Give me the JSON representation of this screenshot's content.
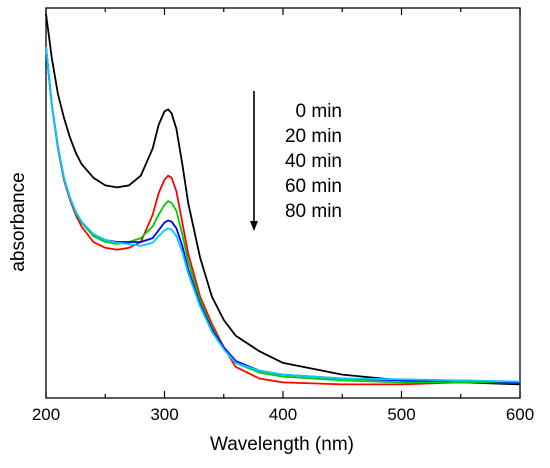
{
  "chart_data": {
    "type": "line",
    "xlabel": "Wavelength (nm)",
    "ylabel": "absorbance",
    "xlim": [
      200,
      600
    ],
    "ylim": [
      0,
      1
    ],
    "x_ticks": [
      200,
      300,
      400,
      500,
      600
    ],
    "y_ticks_shown": false,
    "grid": false,
    "legend_placement": "top-center",
    "legend_arrow": "down",
    "series": [
      {
        "name": "0 min",
        "color": "#000000",
        "x": [
          200,
          205,
          210,
          215,
          220,
          225,
          230,
          240,
          250,
          260,
          270,
          280,
          290,
          295,
          300,
          303,
          306,
          310,
          315,
          320,
          330,
          340,
          350,
          360,
          380,
          400,
          450,
          500,
          550,
          600
        ],
        "y": [
          0.985,
          0.87,
          0.78,
          0.72,
          0.67,
          0.63,
          0.6,
          0.565,
          0.545,
          0.54,
          0.545,
          0.57,
          0.64,
          0.7,
          0.735,
          0.74,
          0.73,
          0.69,
          0.6,
          0.5,
          0.36,
          0.26,
          0.2,
          0.16,
          0.12,
          0.09,
          0.06,
          0.045,
          0.04,
          0.035
        ]
      },
      {
        "name": "20 min",
        "color": "#ff0000",
        "x": [
          200,
          205,
          210,
          215,
          220,
          225,
          230,
          240,
          250,
          260,
          270,
          280,
          290,
          295,
          300,
          303,
          306,
          310,
          315,
          320,
          330,
          340,
          350,
          360,
          380,
          400,
          450,
          500,
          550,
          600
        ],
        "y": [
          0.9,
          0.75,
          0.64,
          0.56,
          0.51,
          0.47,
          0.44,
          0.4,
          0.385,
          0.38,
          0.385,
          0.4,
          0.47,
          0.525,
          0.56,
          0.57,
          0.565,
          0.53,
          0.45,
          0.37,
          0.26,
          0.19,
          0.13,
          0.08,
          0.05,
          0.04,
          0.035,
          0.035,
          0.04,
          0.04
        ]
      },
      {
        "name": "40 min",
        "color": "#00cc00",
        "x": [
          200,
          205,
          210,
          215,
          220,
          225,
          230,
          240,
          250,
          260,
          270,
          280,
          290,
          295,
          300,
          303,
          306,
          310,
          315,
          320,
          330,
          340,
          350,
          360,
          380,
          400,
          450,
          500,
          550,
          600
        ],
        "y": [
          0.9,
          0.75,
          0.645,
          0.565,
          0.515,
          0.475,
          0.45,
          0.415,
          0.4,
          0.395,
          0.4,
          0.41,
          0.44,
          0.47,
          0.495,
          0.505,
          0.5,
          0.48,
          0.42,
          0.35,
          0.25,
          0.18,
          0.13,
          0.09,
          0.065,
          0.055,
          0.045,
          0.04,
          0.04,
          0.04
        ]
      },
      {
        "name": "60 min",
        "color": "#0000ff",
        "x": [
          200,
          205,
          210,
          215,
          220,
          225,
          230,
          240,
          250,
          260,
          270,
          280,
          290,
          295,
          300,
          303,
          306,
          310,
          315,
          320,
          330,
          340,
          350,
          360,
          380,
          400,
          450,
          500,
          550,
          600
        ],
        "y": [
          0.9,
          0.75,
          0.645,
          0.565,
          0.515,
          0.478,
          0.452,
          0.42,
          0.405,
          0.4,
          0.4,
          0.4,
          0.41,
          0.43,
          0.45,
          0.455,
          0.452,
          0.435,
          0.39,
          0.33,
          0.24,
          0.175,
          0.13,
          0.095,
          0.07,
          0.06,
          0.05,
          0.045,
          0.045,
          0.04
        ]
      },
      {
        "name": "80 min",
        "color": "#00ccff",
        "x": [
          200,
          205,
          210,
          215,
          220,
          225,
          230,
          240,
          250,
          260,
          270,
          280,
          290,
          295,
          300,
          303,
          306,
          310,
          315,
          320,
          330,
          340,
          350,
          360,
          380,
          400,
          450,
          500,
          550,
          600
        ],
        "y": [
          0.9,
          0.75,
          0.645,
          0.565,
          0.515,
          0.478,
          0.452,
          0.42,
          0.405,
          0.398,
          0.395,
          0.39,
          0.398,
          0.415,
          0.43,
          0.435,
          0.432,
          0.415,
          0.375,
          0.32,
          0.235,
          0.17,
          0.125,
          0.09,
          0.07,
          0.06,
          0.05,
          0.048,
          0.045,
          0.042
        ]
      }
    ]
  }
}
